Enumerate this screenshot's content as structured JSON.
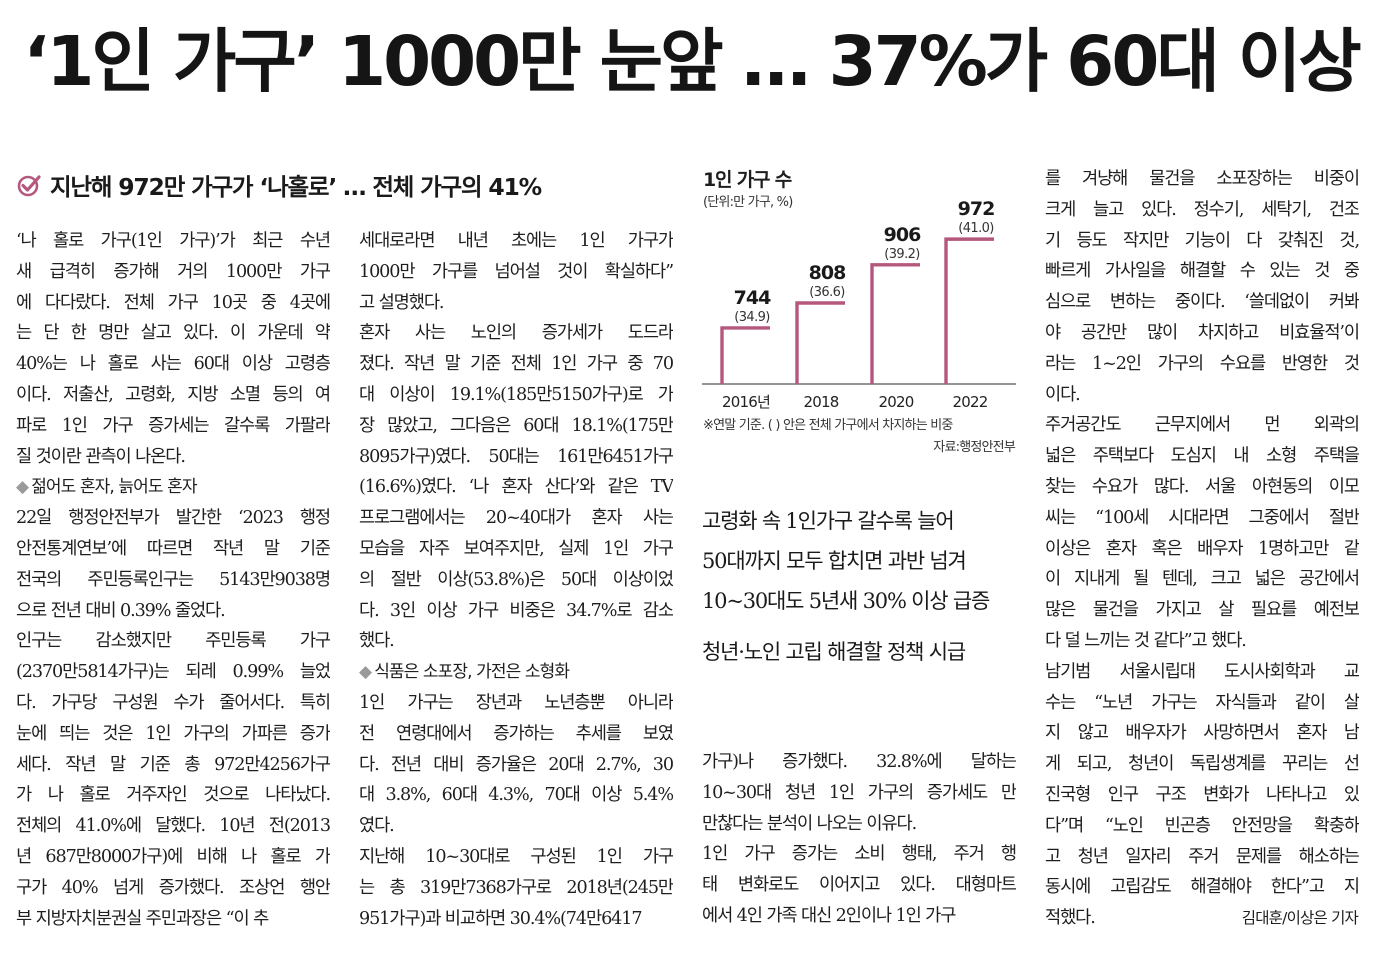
{
  "article": {
    "headline": "‘1인 가구’ 1000만 눈앞 … 37%가 60대 이상",
    "subhead": "지난해 972만 가구가 ‘나홀로’ … 전체 가구의 41%",
    "byline": "김대훈/이상은 기자",
    "summary": [
      "고령화 속 1인가구 갈수록 늘어",
      "50대까지 모두 합치면 과반 넘겨",
      "10~30대도 5년새 30% 이상 급증",
      "청년·노인 고립 해결할 정책 시급"
    ],
    "columns": {
      "col1": [
        "‘나 홀로 가구(1인 가구)’가 최근 수년",
        "새 급격히 증가해 거의 1000만 가구",
        "에 다다랐다. 전체 가구 10곳 중 4곳에",
        "는 단 한 명만 살고 있다. 이 가운데 약",
        "40%는 나 홀로 사는 60대 이상 고령층",
        "이다. 저출산, 고령화, 지방 소멸 등의 여",
        "파로 1인 가구 증가세는 갈수록 가팔라",
        "질 것이란 관측이 나온다.",
        "◆젊어도 혼자, 늙어도 혼자",
        "22일 행정안전부가 발간한 ‘2023 행정",
        "안전통계연보’에 따르면 작년 말 기준",
        "전국의 주민등록인구는 5143만9038명",
        "으로 전년 대비 0.39% 줄었다.",
        "  인구는 감소했지만 주민등록 가구",
        "(2370만5814가구)는 되레 0.99% 늘었",
        "다. 가구당 구성원 수가 줄어서다. 특히",
        "눈에 띄는 것은 1인 가구의 가파른 증가",
        "세다. 작년 말 기준 총 972만4256가구",
        "가 나 홀로 거주자인 것으로 나타났다.",
        "전체의 41.0%에 달했다. 10년 전(2013",
        "년 687만8000가구)에 비해 나 홀로 가",
        "구가 40% 넘게 증가했다. 조상언 행안",
        "부 지방자치분권실 주민과장은 “이 추"
      ],
      "col2": [
        "세대로라면 내년 초에는 1인 가구가",
        "1000만 가구를 넘어설 것이 확실하다”",
        "고 설명했다.",
        "  혼자 사는 노인의 증가세가 도드라",
        "졌다. 작년 말 기준 전체 1인 가구 중 70",
        "대 이상이 19.1%(185만5150가구)로 가",
        "장 많았고, 그다음은 60대 18.1%(175만",
        "8095가구)였다. 50대는 161만6451가구",
        "(16.6%)였다. ‘나 혼자 산다’와 같은 TV",
        "프로그램에서는 20~40대가 혼자 사는",
        "모습을 자주 보여주지만, 실제 1인 가구",
        "의 절반 이상(53.8%)은 50대 이상이었",
        "다. 3인 이상 가구 비중은 34.7%로 감소",
        "했다.",
        "◆식품은 소포장, 가전은 소형화",
        "1인 가구는 장년과 노년층뿐 아니라",
        "전 연령대에서 증가하는 추세를 보였",
        "다. 전년 대비 증가율은 20대 2.7%, 30",
        "대 3.8%, 60대 4.3%, 70대 이상 5.4%",
        "였다.",
        "  지난해 10~30대로 구성된 1인 가구",
        "는 총 319만7368가구로 2018년(245만",
        "951가구)과 비교하면 30.4%(74만6417"
      ],
      "col3": [
        "가구)나 증가했다. 32.8%에 달하는",
        "10~30대 청년 1인 가구의 증가세도 만",
        "만찮다는 분석이 나오는 이유다.",
        "  1인 가구 증가는 소비 행태, 주거 행",
        "태 변화로도 이어지고 있다. 대형마트",
        "에서 4인 가족 대신 2인이나 1인 가구"
      ],
      "col4": [
        "를 겨냥해 물건을 소포장하는 비중이",
        "크게 늘고 있다. 정수기, 세탁기, 건조",
        "기 등도 작지만 기능이 다 갖춰진 것,",
        "빠르게 가사일을 해결할 수 있는 것 중",
        "심으로 변하는 중이다. ‘쓸데없이 커봐",
        "야 공간만 많이 차지하고 비효율적’이",
        "라는 1~2인 가구의 수요를 반영한 것",
        "이다.",
        "  주거공간도 근무지에서 먼 외곽의",
        "넓은 주택보다 도심지 내 소형 주택을",
        "찾는 수요가 많다. 서울 아현동의 이모",
        "씨는 “100세 시대라면 그중에서 절반",
        "이상은 혼자 혹은 배우자 1명하고만 같",
        "이 지내게 될 텐데, 크고 넓은 공간에서",
        "많은 물건을 가지고 살 필요를 예전보",
        "다 덜 느끼는 것 같다”고 했다.",
        "  남기범 서울시립대 도시사회학과 교",
        "수는 “노년 가구는 자식들과 같이 살",
        "지 않고 배우자가 사망하면서 혼자 남",
        "게 되고, 청년이 독립생계를 꾸리는 선",
        "진국형 인구 구조 변화가 나타나고 있",
        "다”며 “노인 빈곤층 안전망을 확충하",
        "고 청년 일자리 주거 문제를 해소하는",
        "동시에 고립감도 해결해야 한다”고 지",
        "적했다."
      ]
    }
  },
  "chart_data": {
    "type": "bar",
    "title": "1인 가구 수",
    "unit_label": "(단위:만 가구, %)",
    "categories": [
      "2016년",
      "2018",
      "2020",
      "2022"
    ],
    "values": [
      744,
      808,
      906,
      972
    ],
    "value_labels": [
      "744",
      "808",
      "906",
      "972"
    ],
    "shares": [
      34.9,
      36.6,
      39.2,
      41.0
    ],
    "share_labels": [
      "(34.9)",
      "(36.6)",
      "(39.2)",
      "(41.0)"
    ],
    "ylim": [
      600,
      980
    ],
    "note": "※연말 기준. ( ) 안은 전체 가구에서 차지하는 비중",
    "source": "자료:행정안전부",
    "bar_color": "#b5587e",
    "grid": false
  }
}
